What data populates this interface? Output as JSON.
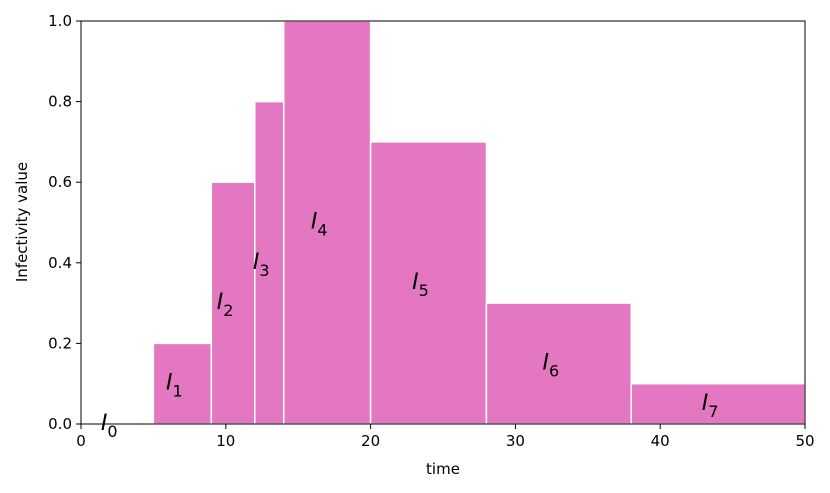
{
  "chart_data": {
    "type": "histogram",
    "bins": [
      0,
      5,
      9,
      12,
      14,
      20,
      28,
      38,
      50
    ],
    "values": [
      0,
      0.2,
      0.6,
      0.8,
      1.0,
      0.7,
      0.3,
      0.1
    ],
    "color": "#e377c2",
    "annotations": [
      {
        "text": "I",
        "subscript": "0"
      },
      {
        "text": "I",
        "subscript": "1"
      },
      {
        "text": "I",
        "subscript": "2"
      },
      {
        "text": "I",
        "subscript": "3"
      },
      {
        "text": "I",
        "subscript": "4"
      },
      {
        "text": "I",
        "subscript": "5"
      },
      {
        "text": "I",
        "subscript": "6"
      },
      {
        "text": "I",
        "subscript": "7"
      }
    ],
    "xlabel": "time",
    "ylabel": "Infectivity value",
    "xlim": [
      0,
      50
    ],
    "ylim": [
      0,
      1.0
    ],
    "xticks": [
      0,
      10,
      20,
      30,
      40,
      50
    ],
    "yticks": [
      {
        "value": 0,
        "label": "0.0"
      },
      0.2,
      0.4,
      0.6,
      0.8,
      {
        "value": 1.0,
        "label": "1.0"
      }
    ]
  }
}
